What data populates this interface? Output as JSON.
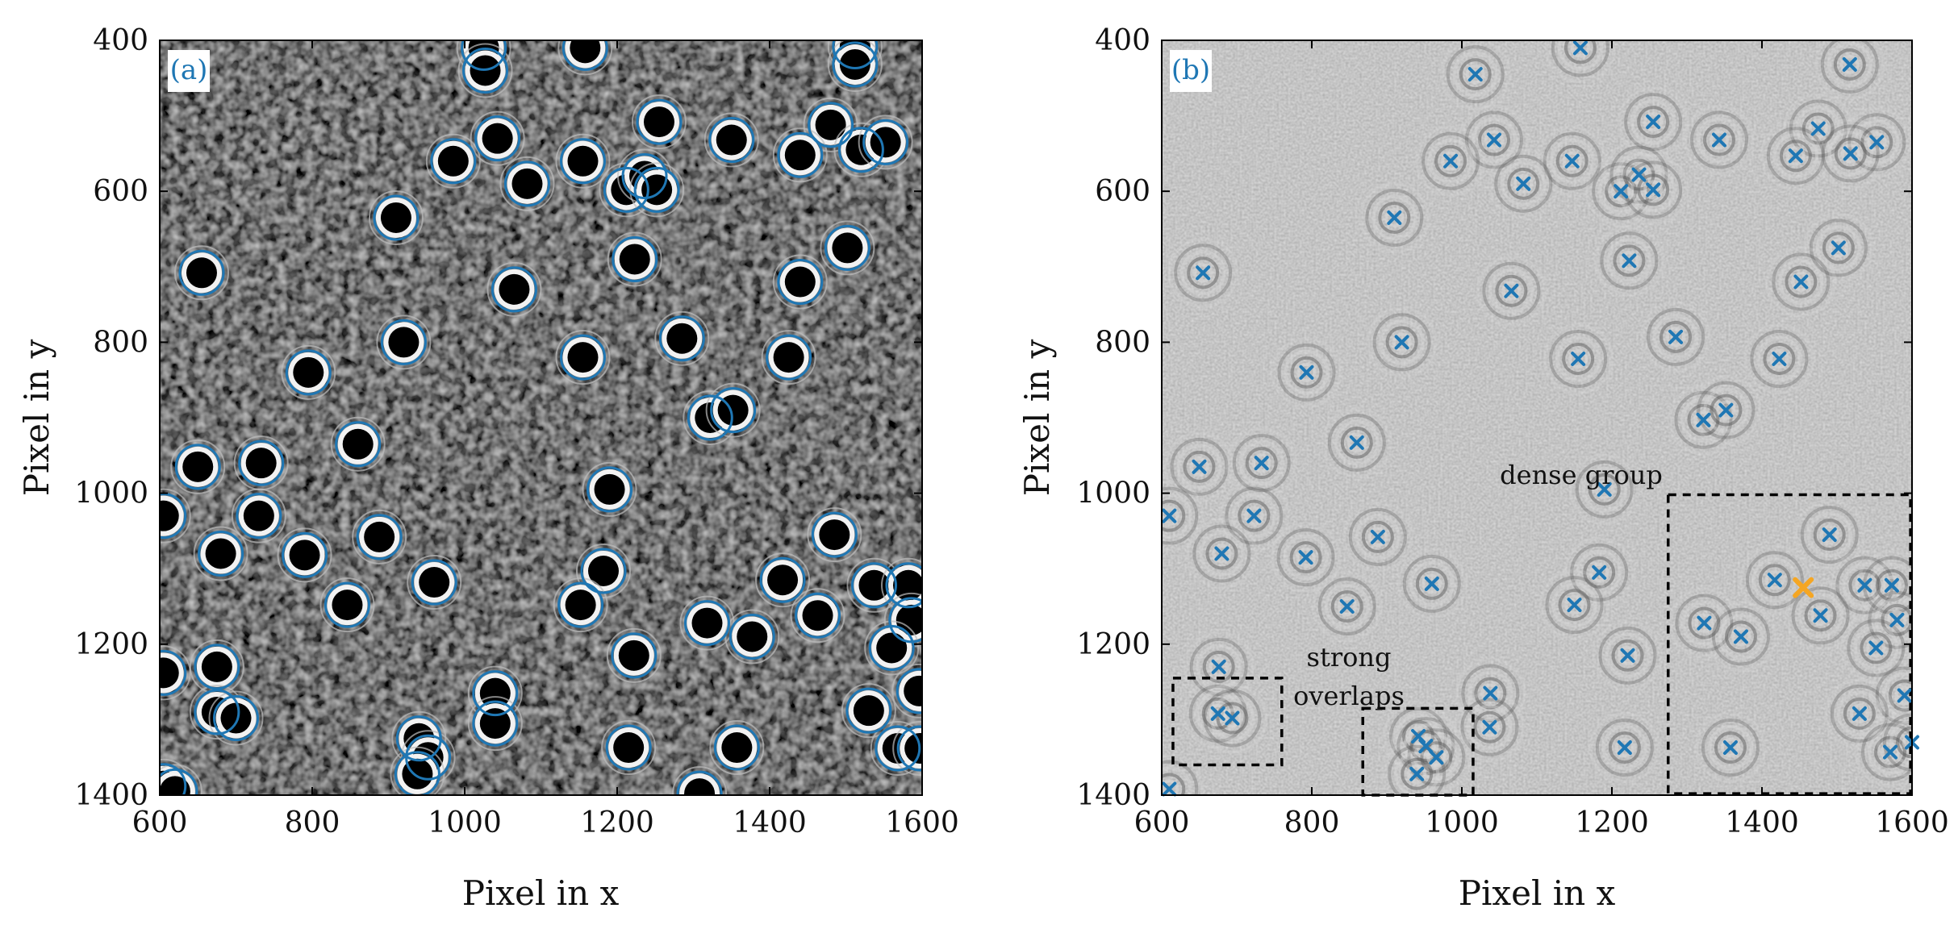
{
  "chart_data": [
    {
      "type": "scatter",
      "panel_label": "(a)",
      "xlabel": "Pixel in x",
      "ylabel": "Pixel in y",
      "xlim": [
        600,
        1600
      ],
      "ylim": [
        1400,
        400
      ],
      "y_inverted": true,
      "x_ticks": [
        600,
        800,
        1000,
        1200,
        1400,
        1600
      ],
      "y_ticks": [
        400,
        600,
        800,
        1000,
        1200,
        1400
      ],
      "background": "dark speckle image with black particle cores and ring interference",
      "marker": "circle",
      "marker_color": "#1f77b4",
      "points": [
        [
          1025,
          410
        ],
        [
          1027,
          440
        ],
        [
          1158,
          410
        ],
        [
          1512,
          408
        ],
        [
          1512,
          432
        ],
        [
          1043,
          530
        ],
        [
          1255,
          508
        ],
        [
          1350,
          532
        ],
        [
          1480,
          512
        ],
        [
          1520,
          545
        ],
        [
          1552,
          535
        ],
        [
          1440,
          552
        ],
        [
          1155,
          560
        ],
        [
          985,
          560
        ],
        [
          1082,
          590
        ],
        [
          1212,
          598
        ],
        [
          1236,
          580
        ],
        [
          1252,
          598
        ],
        [
          910,
          635
        ],
        [
          1502,
          675
        ],
        [
          655,
          708
        ],
        [
          1223,
          690
        ],
        [
          1065,
          730
        ],
        [
          1440,
          720
        ],
        [
          920,
          800
        ],
        [
          795,
          840
        ],
        [
          1285,
          795
        ],
        [
          1155,
          820
        ],
        [
          1425,
          820
        ],
        [
          1322,
          900
        ],
        [
          1352,
          890
        ],
        [
          860,
          935
        ],
        [
          650,
          965
        ],
        [
          733,
          960
        ],
        [
          605,
          1030
        ],
        [
          730,
          1030
        ],
        [
          1190,
          995
        ],
        [
          680,
          1080
        ],
        [
          790,
          1082
        ],
        [
          888,
          1058
        ],
        [
          1485,
          1055
        ],
        [
          1182,
          1103
        ],
        [
          960,
          1118
        ],
        [
          1152,
          1148
        ],
        [
          846,
          1148
        ],
        [
          1417,
          1115
        ],
        [
          1537,
          1122
        ],
        [
          1582,
          1122
        ],
        [
          1463,
          1162
        ],
        [
          1318,
          1172
        ],
        [
          1377,
          1190
        ],
        [
          1586,
          1168
        ],
        [
          1222,
          1215
        ],
        [
          1560,
          1205
        ],
        [
          605,
          1238
        ],
        [
          675,
          1230
        ],
        [
          675,
          1290
        ],
        [
          700,
          1298
        ],
        [
          1040,
          1265
        ],
        [
          1040,
          1305
        ],
        [
          940,
          1325
        ],
        [
          952,
          1350
        ],
        [
          938,
          1372
        ],
        [
          1215,
          1337
        ],
        [
          1357,
          1337
        ],
        [
          1530,
          1288
        ],
        [
          1596,
          1262
        ],
        [
          1568,
          1338
        ],
        [
          1597,
          1338
        ],
        [
          605,
          1388
        ],
        [
          620,
          1395
        ],
        [
          1308,
          1398
        ]
      ]
    },
    {
      "type": "scatter",
      "panel_label": "(b)",
      "xlabel": "Pixel in x",
      "ylabel": "Pixel in y",
      "xlim": [
        600,
        1600
      ],
      "ylim": [
        1400,
        400
      ],
      "y_inverted": true,
      "x_ticks": [
        600,
        800,
        1000,
        1200,
        1400,
        1600
      ],
      "y_ticks": [
        400,
        600,
        800,
        1000,
        1200,
        1400
      ],
      "background": "gray interference hologram with concentric fringe rings",
      "marker": "x",
      "marker_color": "#1f77b4",
      "highlight_color": "#f5a623",
      "points": [
        [
          1158,
          410
        ],
        [
          1018,
          445
        ],
        [
          1517,
          432
        ],
        [
          1043,
          532
        ],
        [
          1255,
          508
        ],
        [
          1343,
          532
        ],
        [
          1475,
          517
        ],
        [
          1553,
          535
        ],
        [
          985,
          560
        ],
        [
          1147,
          560
        ],
        [
          1445,
          553
        ],
        [
          1518,
          550
        ],
        [
          1082,
          590
        ],
        [
          1212,
          600
        ],
        [
          1236,
          578
        ],
        [
          1255,
          598
        ],
        [
          910,
          635
        ],
        [
          1502,
          675
        ],
        [
          655,
          708
        ],
        [
          1223,
          692
        ],
        [
          1066,
          732
        ],
        [
          1452,
          720
        ],
        [
          920,
          800
        ],
        [
          793,
          840
        ],
        [
          1285,
          793
        ],
        [
          1155,
          822
        ],
        [
          1423,
          822
        ],
        [
          1322,
          903
        ],
        [
          1352,
          890
        ],
        [
          860,
          933
        ],
        [
          650,
          965
        ],
        [
          733,
          960
        ],
        [
          610,
          1030
        ],
        [
          723,
          1030
        ],
        [
          1190,
          995
        ],
        [
          680,
          1080
        ],
        [
          792,
          1085
        ],
        [
          888,
          1058
        ],
        [
          1490,
          1055
        ],
        [
          1183,
          1105
        ],
        [
          960,
          1120
        ],
        [
          1417,
          1115
        ],
        [
          1537,
          1122
        ],
        [
          1573,
          1122
        ],
        [
          1150,
          1148
        ],
        [
          847,
          1150
        ],
        [
          1478,
          1162
        ],
        [
          1323,
          1172
        ],
        [
          1580,
          1168
        ],
        [
          1372,
          1190
        ],
        [
          1221,
          1215
        ],
        [
          1552,
          1205
        ],
        [
          676,
          1230
        ],
        [
          1038,
          1265
        ],
        [
          1590,
          1268
        ],
        [
          675,
          1292
        ],
        [
          694,
          1298
        ],
        [
          1530,
          1292
        ],
        [
          1037,
          1310
        ],
        [
          942,
          1322
        ],
        [
          952,
          1335
        ],
        [
          966,
          1350
        ],
        [
          1217,
          1337
        ],
        [
          1358,
          1337
        ],
        [
          940,
          1372
        ],
        [
          1571,
          1343
        ],
        [
          1600,
          1330
        ],
        [
          610,
          1392
        ]
      ],
      "highlight_points": [
        [
          1455,
          1125
        ]
      ],
      "regions": [
        {
          "label": "",
          "x": [
            615,
            760
          ],
          "y": [
            1245,
            1360
          ]
        },
        {
          "label": "strong overlaps",
          "x": [
            868,
            1015
          ],
          "y": [
            1285,
            1400
          ]
        },
        {
          "label": "dense group",
          "x": [
            1275,
            1598
          ],
          "y": [
            1002,
            1398
          ]
        }
      ]
    }
  ]
}
